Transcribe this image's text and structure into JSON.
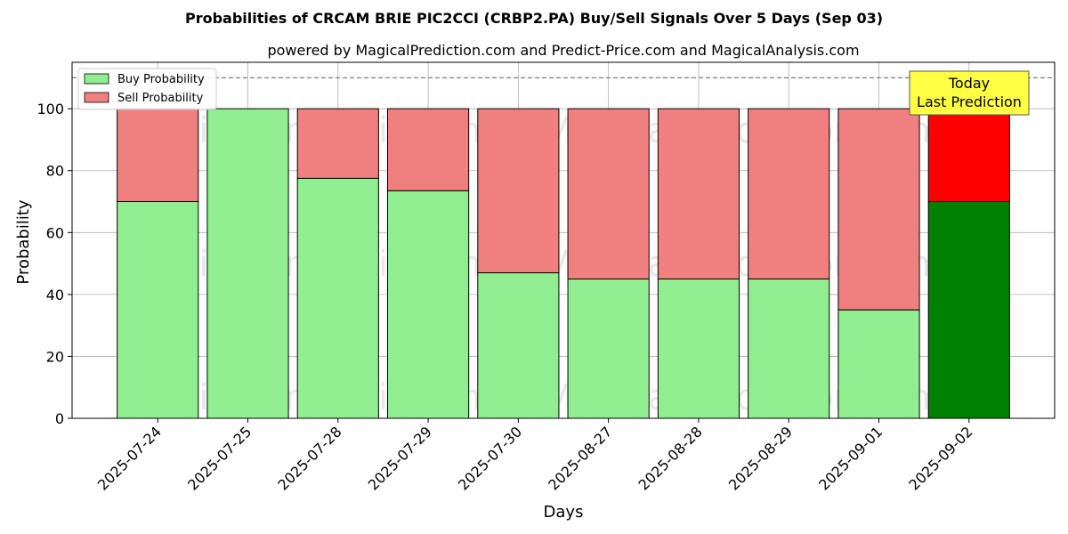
{
  "chart_data": {
    "type": "bar",
    "stacked": true,
    "title": "Probabilities of CRCAM BRIE PIC2CCI (CRBP2.PA) Buy/Sell Signals Over 5 Days (Sep 03)",
    "subtitle": "powered by MagicalPrediction.com and Predict-Price.com and MagicalAnalysis.com",
    "xlabel": "Days",
    "ylabel": "Probability",
    "ylim": [
      0,
      115
    ],
    "yticks": [
      0,
      20,
      40,
      60,
      80,
      100
    ],
    "reference_line": 110,
    "grid": true,
    "legend_position": "top-left",
    "categories": [
      "2025-07-24",
      "2025-07-25",
      "2025-07-28",
      "2025-07-29",
      "2025-07-30",
      "2025-08-27",
      "2025-08-28",
      "2025-08-29",
      "2025-09-01",
      "2025-09-02"
    ],
    "series": [
      {
        "name": "Buy Probability",
        "color": "#90ee90",
        "values": [
          70,
          100,
          77.5,
          73.5,
          47,
          45,
          45,
          45,
          35,
          70
        ]
      },
      {
        "name": "Sell Probability",
        "color": "#f08080",
        "values": [
          30,
          0,
          22.5,
          26.5,
          53,
          55,
          55,
          55,
          65,
          30
        ]
      }
    ],
    "highlight": {
      "index": 9,
      "buy_color": "#008000",
      "sell_color": "#ff0000"
    },
    "annotation": {
      "line1": "Today",
      "line2": "Last Prediction",
      "color": "#ffff44"
    },
    "watermarks": [
      "MagicalAnalysis.com",
      "MagicalPrediction.com"
    ]
  }
}
